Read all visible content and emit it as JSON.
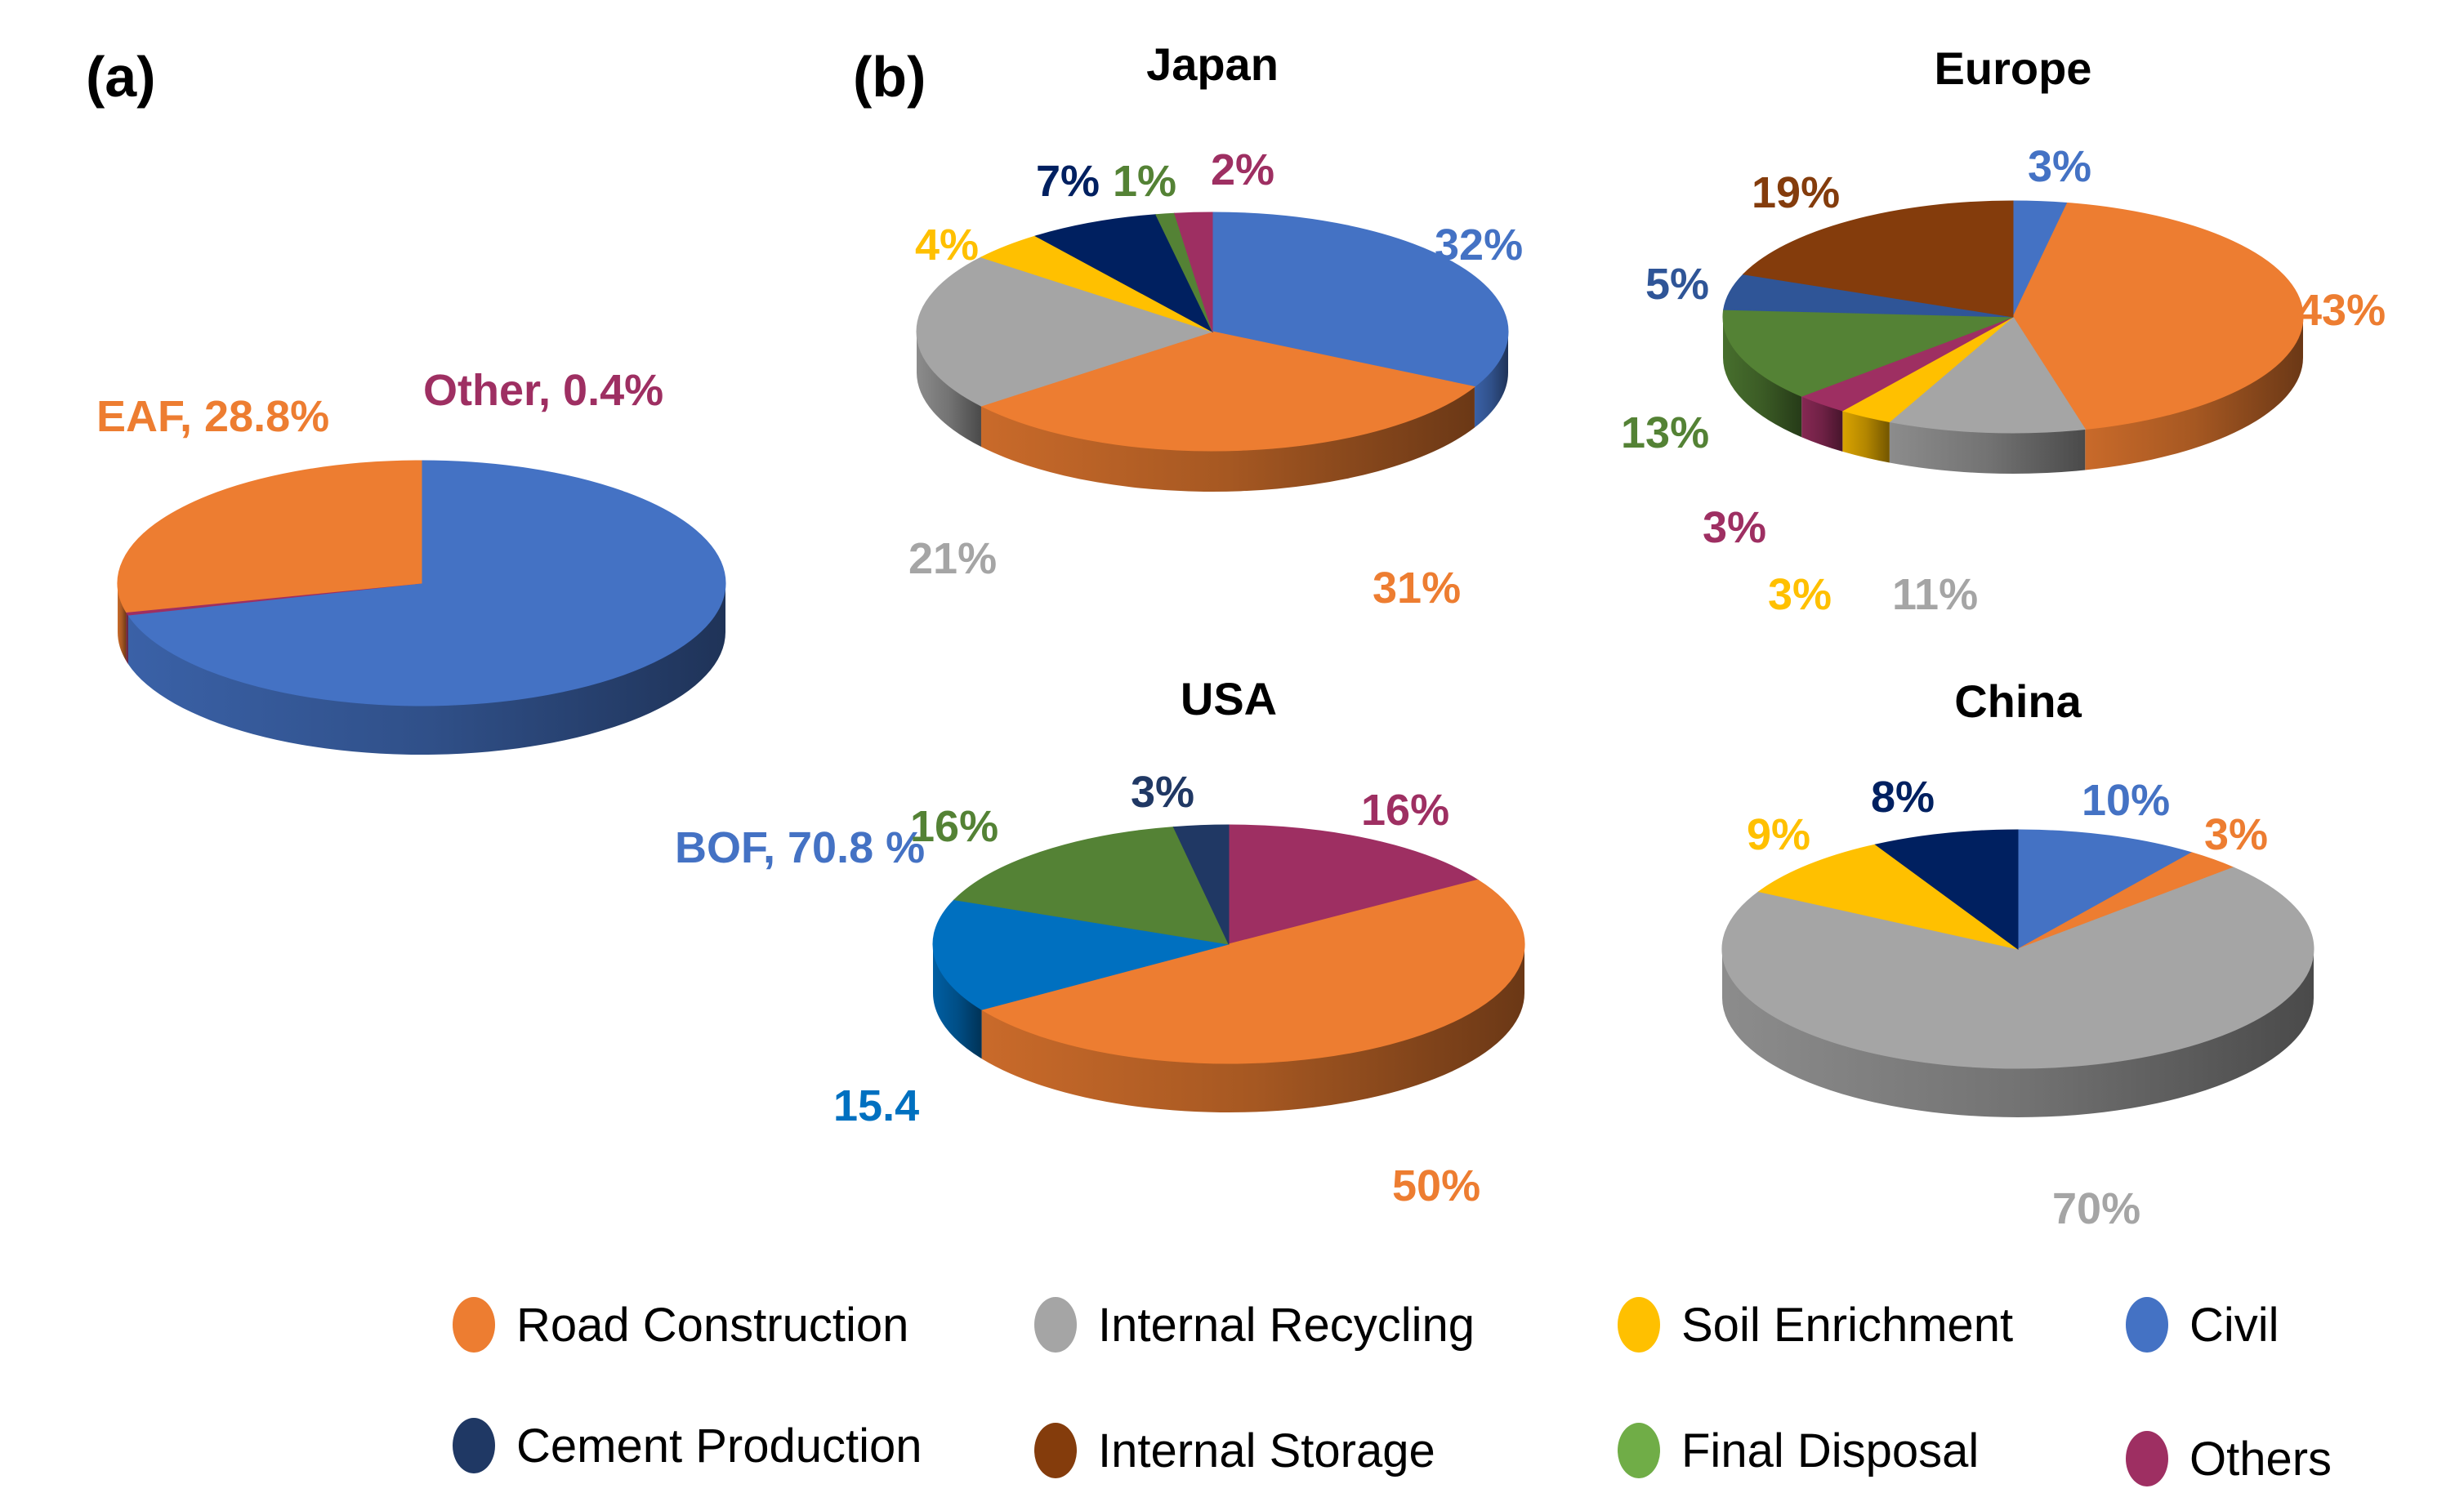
{
  "panel_labels": {
    "a": "(a)",
    "b": "(b)"
  },
  "colors": {
    "Road Construction": "#ED7D31",
    "Internal Recycling": "#A5A5A5",
    "Soil Enrichment": "#FFC000",
    "Civil": "#4472C4",
    "Cement Production": "#1F3864",
    "Internal Storage": "#843C0C",
    "Final Disposal": "#548235",
    "Others": "#9E2F62",
    "USA Civil": "#0070C0",
    "USA Cement": "#203864",
    "BOF": "#4472C4",
    "EAF": "#ED7D31",
    "Other": "#9E2F62"
  },
  "legend": [
    {
      "label": "Road Construction",
      "color": "#ED7D31"
    },
    {
      "label": "Internal Recycling",
      "color": "#A5A5A5"
    },
    {
      "label": "Soil Enrichment",
      "color": "#FFC000"
    },
    {
      "label": "Civil",
      "color": "#4472C4"
    },
    {
      "label": "Cement Production",
      "color": "#1F3864"
    },
    {
      "label": "Internal Storage",
      "color": "#843C0C"
    },
    {
      "label": "Final Disposal",
      "color": "#70AD47"
    },
    {
      "label": "Others",
      "color": "#9E2F62"
    }
  ],
  "chart_data": [
    {
      "type": "pie",
      "panel": "(a)",
      "title": "",
      "slices": [
        {
          "name": "BOF",
          "value": 70.8,
          "label": "BOF, 70.8 %",
          "color": "#4472C4"
        },
        {
          "name": "Other",
          "value": 0.4,
          "label": "Other, 0.4%",
          "color": "#9E2F62"
        },
        {
          "name": "EAF",
          "value": 28.8,
          "label": "EAF, 28.8%",
          "color": "#ED7D31"
        }
      ]
    },
    {
      "type": "pie",
      "panel": "(b)",
      "title": "Japan",
      "slices": [
        {
          "name": "Civil",
          "value": 32,
          "label": "32%",
          "color": "#4472C4"
        },
        {
          "name": "Road Construction",
          "value": 31,
          "label": "31%",
          "color": "#ED7D31"
        },
        {
          "name": "Internal Recycling",
          "value": 21,
          "label": "21%",
          "color": "#A5A5A5"
        },
        {
          "name": "Soil Enrichment",
          "value": 4,
          "label": "4%",
          "color": "#FFC000"
        },
        {
          "name": "Cement Production",
          "value": 7,
          "label": "7%",
          "color": "#002060"
        },
        {
          "name": "Final Disposal",
          "value": 1,
          "label": "1%",
          "color": "#548235"
        },
        {
          "name": "Others",
          "value": 2,
          "label": "2%",
          "color": "#9E2F62"
        }
      ]
    },
    {
      "type": "pie",
      "panel": "(b)",
      "title": "Europe",
      "slices": [
        {
          "name": "Civil",
          "value": 3,
          "label": "3%",
          "color": "#4472C4"
        },
        {
          "name": "Road Construction",
          "value": 43,
          "label": "43%",
          "color": "#ED7D31"
        },
        {
          "name": "Internal Recycling",
          "value": 11,
          "label": "11%",
          "color": "#A5A5A5"
        },
        {
          "name": "Soil Enrichment",
          "value": 3,
          "label": "3%",
          "color": "#FFC000"
        },
        {
          "name": "Others",
          "value": 3,
          "label": "3%",
          "color": "#9E2F62"
        },
        {
          "name": "Final Disposal",
          "value": 13,
          "label": "13%",
          "color": "#548235"
        },
        {
          "name": "Cement Production",
          "value": 5,
          "label": "5%",
          "color": "#2F5597"
        },
        {
          "name": "Internal Storage",
          "value": 19,
          "label": "19%",
          "color": "#843C0C"
        }
      ]
    },
    {
      "type": "pie",
      "panel": "(b)",
      "title": "USA",
      "slices": [
        {
          "name": "Others",
          "value": 16,
          "label": "16%",
          "color": "#9E2F62"
        },
        {
          "name": "Road Construction",
          "value": 50,
          "label": "50%",
          "color": "#ED7D31"
        },
        {
          "name": "Civil",
          "value": 15.4,
          "label": "15.4",
          "color": "#0070C0"
        },
        {
          "name": "Final Disposal",
          "value": 16,
          "label": "16%",
          "color": "#548235"
        },
        {
          "name": "Cement Production",
          "value": 3,
          "label": "3%",
          "color": "#203864"
        }
      ]
    },
    {
      "type": "pie",
      "panel": "(b)",
      "title": "China",
      "slices": [
        {
          "name": "Civil",
          "value": 10,
          "label": "10%",
          "color": "#4472C4"
        },
        {
          "name": "Road Construction",
          "value": 3,
          "label": "3%",
          "color": "#ED7D31"
        },
        {
          "name": "Internal Recycling",
          "value": 70,
          "label": "70%",
          "color": "#A5A5A5"
        },
        {
          "name": "Soil Enrichment",
          "value": 9,
          "label": "9%",
          "color": "#FFC000"
        },
        {
          "name": "Cement Production",
          "value": 8,
          "label": "8%",
          "color": "#002060"
        }
      ]
    }
  ]
}
